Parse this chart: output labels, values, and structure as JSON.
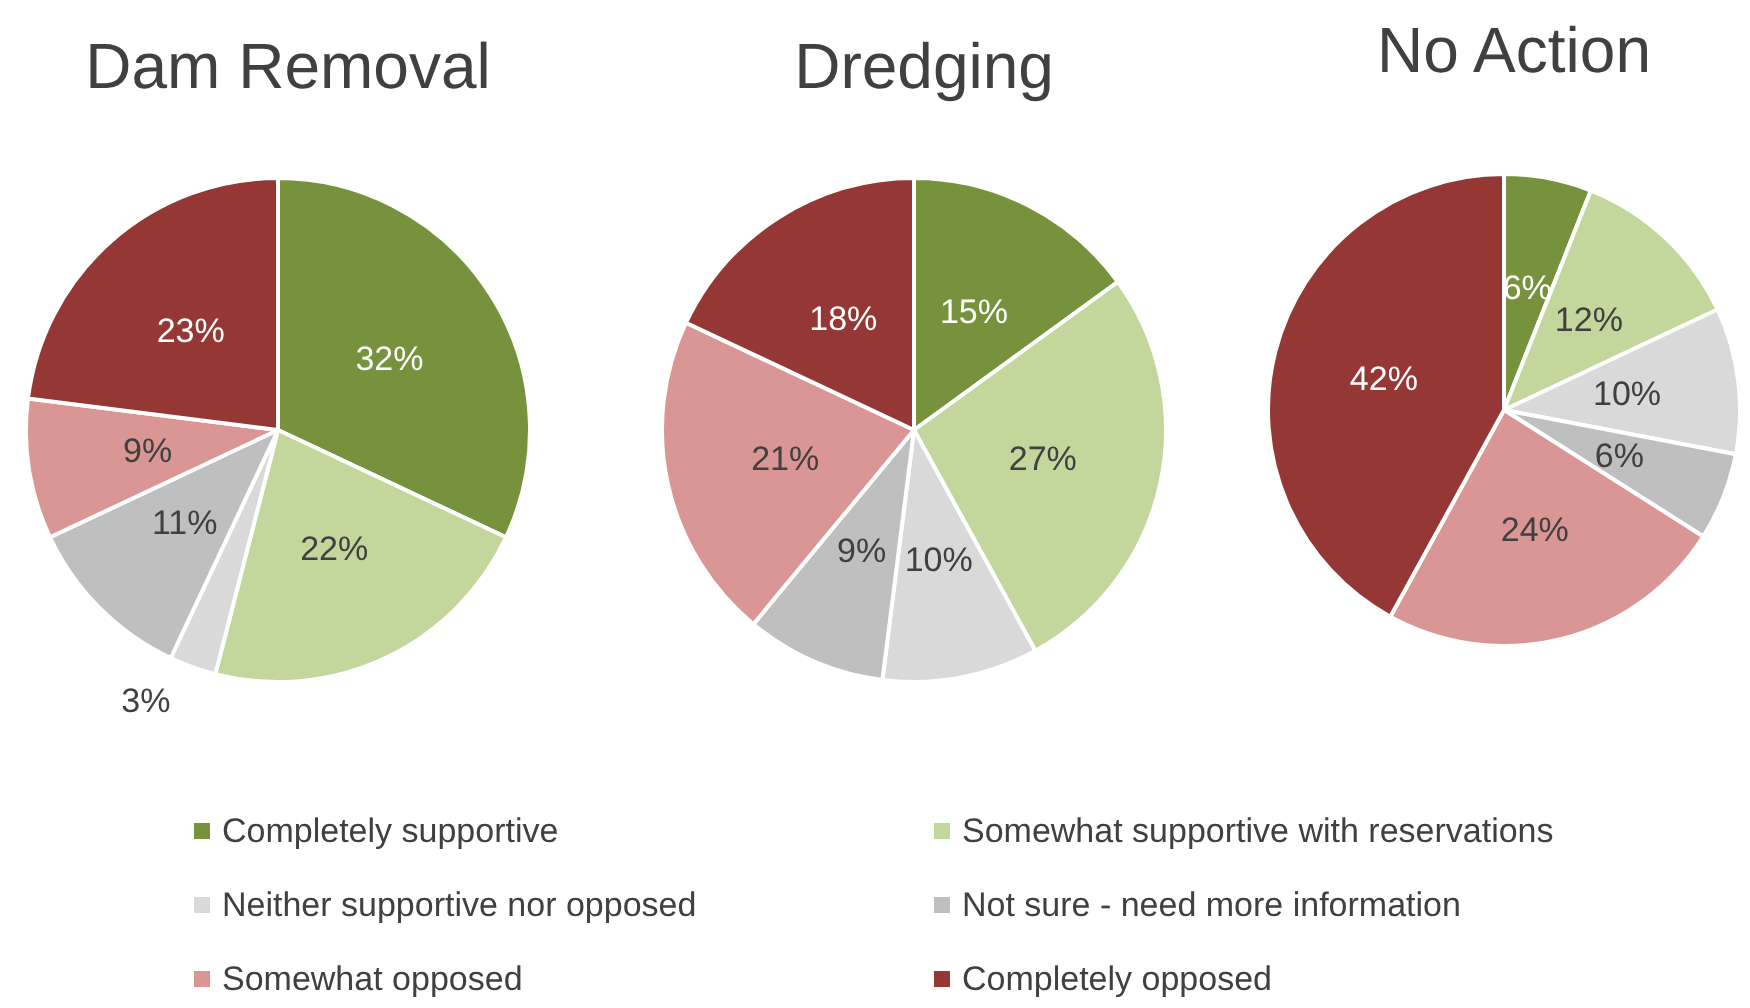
{
  "chart_data": [
    {
      "type": "pie",
      "title": "Dam Removal",
      "categories": [
        "Completely supportive",
        "Somewhat supportive with reservations",
        "Neither supportive nor opposed",
        "Not sure - need more information",
        "Somewhat opposed",
        "Completely opposed"
      ],
      "values": [
        32,
        22,
        3,
        11,
        9,
        23
      ],
      "value_labels": [
        "32%",
        "22%",
        "3%",
        "11%",
        "9%",
        "23%"
      ],
      "colors": [
        "#76923c",
        "#c3d69b",
        "#d9d9d9",
        "#bfbfbf",
        "#d99694",
        "#953735"
      ],
      "legend": "bottom"
    },
    {
      "type": "pie",
      "title": "Dredging",
      "categories": [
        null,
        null,
        null,
        null,
        null,
        null
      ],
      "values": [
        15,
        27,
        10,
        9,
        21,
        18
      ],
      "value_labels": [
        "15%",
        "27%",
        "10%",
        "9%",
        "21%",
        "18%"
      ],
      "colors": [
        "#76923c",
        "#c3d69b",
        "#d9d9d9",
        "#bfbfbf",
        "#d99694",
        "#953735"
      ]
    },
    {
      "type": "pie",
      "title": "No Action",
      "categories": [
        null,
        null,
        null,
        null,
        null,
        null
      ],
      "values": [
        6,
        12,
        10,
        6,
        24,
        42
      ],
      "value_labels": [
        "6%",
        "12%",
        "10%",
        "6%",
        "24%",
        "42%"
      ],
      "colors": [
        "#76923c",
        "#c3d69b",
        "#d9d9d9",
        "#bfbfbf",
        "#d99694",
        "#953735"
      ]
    }
  ]
}
